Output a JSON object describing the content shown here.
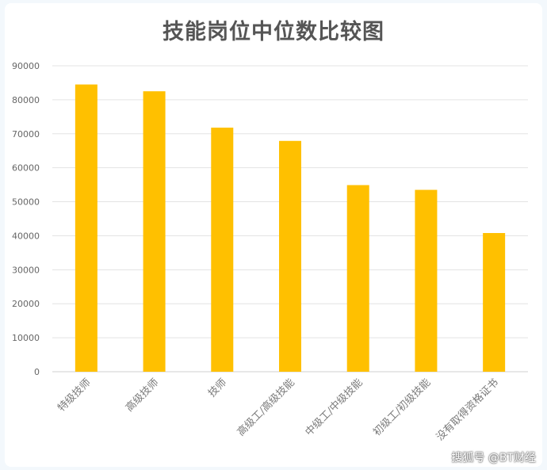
{
  "chart_data": {
    "type": "bar",
    "title": "技能岗位中位数比较图",
    "categories": [
      "特级技师",
      "高级技师",
      "技师",
      "高级工/高级技能",
      "中级工/中级技能",
      "初级工/初级技能",
      "没有取得资格证书"
    ],
    "values": [
      84500,
      82500,
      71800,
      67900,
      54900,
      53500,
      40800
    ],
    "ylim": [
      0,
      90000
    ],
    "yticks": [
      0,
      10000,
      20000,
      30000,
      40000,
      50000,
      60000,
      70000,
      80000,
      90000
    ],
    "grid": true,
    "bar_color": "#ffc000",
    "xlabel": "",
    "ylabel": ""
  },
  "watermark": "搜狐号 @BT财经"
}
